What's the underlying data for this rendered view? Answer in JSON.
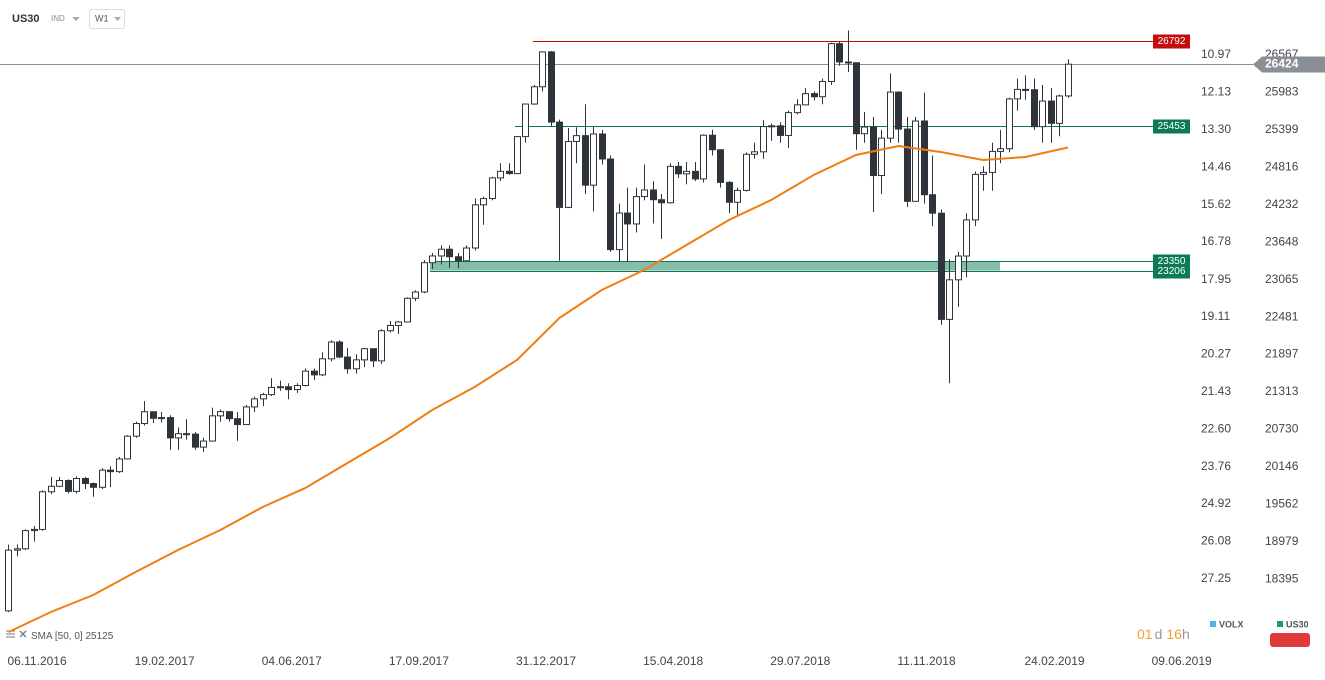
{
  "chart_data": {
    "type": "candlestick",
    "title": "US30",
    "subtitle": "IND",
    "interval": "W1",
    "xlim": [
      -1,
      140
    ],
    "xticks": [
      {
        "value": 0,
        "label": "06.11.2016"
      },
      {
        "value": 15,
        "label": "19.02.2017"
      },
      {
        "value": 30,
        "label": "04.06.2017"
      },
      {
        "value": 45,
        "label": "17.09.2017"
      },
      {
        "value": 60,
        "label": "31.12.2017"
      },
      {
        "value": 75,
        "label": "15.04.2018"
      },
      {
        "value": 90,
        "label": "29.07.2018"
      },
      {
        "value": 105,
        "label": "11.11.2018"
      },
      {
        "value": 120,
        "label": "24.02.2019"
      },
      {
        "value": 135,
        "label": "09.06.2019"
      }
    ],
    "ylim": [
      17290,
      27425
    ],
    "yticks": [
      26567,
      25983,
      25399,
      24816,
      24232,
      23648,
      23065,
      22481,
      21897,
      21313,
      20730,
      20146,
      19562,
      18979,
      18395
    ],
    "y2lim": [
      29.46,
      9.26
    ],
    "y2ticks": [
      10.97,
      12.13,
      {
        "value": 13.3,
        "label": "13.30"
      },
      14.46,
      15.62,
      16.78,
      17.95,
      19.11,
      20.27,
      21.43,
      {
        "value": 22.6,
        "label": "22.60"
      },
      23.76,
      24.92,
      26.08,
      27.25
    ],
    "series": [
      {
        "name": "US30",
        "up_color": "#ffffff",
        "down_color": "#2f343b",
        "open": [
          17900,
          18847,
          18868,
          19152,
          19170,
          19757,
          19843,
          19933,
          19763,
          19964,
          19886,
          19827,
          20094,
          20071,
          20269,
          20624,
          20821,
          21005,
          20903,
          20914,
          20597,
          20663,
          20656,
          20453,
          20548,
          20941,
          21007,
          20897,
          20805,
          21080,
          21206,
          21272,
          21384,
          21395,
          21350,
          21414,
          21638,
          21580,
          21830,
          22092,
          21858,
          21675,
          21814,
          21988,
          21798,
          22268,
          22350,
          22405,
          22774,
          22872,
          23329,
          23434,
          23539,
          23422,
          23358,
          23558,
          24231,
          24329,
          24651,
          24754,
          24719,
          25295,
          25803,
          26072,
          26616,
          25521,
          24191,
          25219,
          25310,
          24538,
          25336,
          24946,
          23533,
          24103,
          23933,
          24360,
          24463,
          24311,
          24263,
          24831,
          24715,
          24753,
          24635,
          25317,
          25090,
          24581,
          24271,
          24456,
          25019,
          25058,
          25451,
          25463,
          25313,
          25669,
          25790,
          25965,
          25917,
          26155,
          26744,
          26458,
          26447,
          25340,
          25444,
          24688,
          25271,
          25989,
          25413,
          24286,
          25538,
          24389,
          24101,
          22445,
          23062,
          23433,
          23996,
          24706,
          24737,
          25064,
          25106,
          25883,
          26031,
          26026,
          25450,
          25849,
          25502,
          25929
        ],
        "high": [
          18934,
          18935,
          19170,
          19225,
          19780,
          19990,
          19990,
          19950,
          19999,
          19990,
          19900,
          20125,
          20155,
          20300,
          20640,
          20850,
          21170,
          21000,
          21000,
          20950,
          20760,
          20890,
          20690,
          20600,
          21070,
          21040,
          21010,
          21000,
          21110,
          21240,
          21300,
          21530,
          21490,
          21450,
          21450,
          21680,
          21680,
          21930,
          22120,
          22120,
          22000,
          21900,
          22000,
          21990,
          22290,
          22420,
          22420,
          22790,
          22900,
          23370,
          23480,
          23600,
          23600,
          23480,
          23600,
          24330,
          24360,
          24670,
          24880,
          24880,
          25300,
          25810,
          26100,
          26620,
          26630,
          25560,
          25430,
          25440,
          25800,
          25450,
          25400,
          25000,
          24250,
          24500,
          24500,
          24860,
          24600,
          24400,
          24880,
          24900,
          24900,
          24900,
          25330,
          25400,
          25100,
          24600,
          24500,
          25050,
          25200,
          25550,
          25500,
          25520,
          25700,
          25880,
          26050,
          26000,
          26200,
          26760,
          26770,
          26950,
          26450,
          25680,
          25600,
          25400,
          26280,
          26000,
          25600,
          25600,
          25980,
          25000,
          24160,
          23380,
          23500,
          24100,
          24750,
          24830,
          25200,
          25400,
          25900,
          26200,
          26250,
          26200,
          26100,
          26050,
          25950,
          26500
        ],
        "low": [
          17880,
          18750,
          18850,
          18980,
          19150,
          19720,
          19830,
          19730,
          19730,
          19800,
          19680,
          19800,
          19830,
          20050,
          20260,
          20600,
          20790,
          20830,
          20840,
          20410,
          20410,
          20570,
          20410,
          20380,
          20540,
          20850,
          20850,
          20550,
          20800,
          21000,
          21090,
          21250,
          21330,
          21200,
          21300,
          21400,
          21500,
          21560,
          21790,
          21840,
          21600,
          21600,
          21700,
          21700,
          21750,
          22240,
          22220,
          22400,
          22730,
          22850,
          23230,
          23300,
          23250,
          23240,
          23360,
          23520,
          23920,
          24300,
          24600,
          24700,
          24710,
          25200,
          25790,
          26000,
          25460,
          23360,
          24180,
          24880,
          24400,
          24130,
          24860,
          23500,
          23340,
          23340,
          23800,
          24300,
          23940,
          23700,
          24250,
          24650,
          24550,
          24600,
          24580,
          25000,
          24500,
          24100,
          24070,
          24440,
          24950,
          24950,
          25230,
          25200,
          25120,
          25640,
          25780,
          25860,
          25800,
          26100,
          26400,
          26300,
          25090,
          25200,
          24120,
          24400,
          25200,
          25200,
          24200,
          24280,
          24250,
          23900,
          22360,
          21450,
          22640,
          23100,
          23900,
          24450,
          24450,
          24880,
          25050,
          25700,
          25870,
          25400,
          25200,
          25200,
          25300,
          25900
        ],
        "close": [
          18847,
          18868,
          19152,
          19170,
          19757,
          19843,
          19933,
          19763,
          19964,
          19886,
          19827,
          20094,
          20071,
          20269,
          20624,
          20821,
          21005,
          20903,
          20914,
          20597,
          20663,
          20656,
          20453,
          20548,
          20941,
          21007,
          20897,
          20805,
          21080,
          21206,
          21272,
          21384,
          21395,
          21350,
          21414,
          21638,
          21580,
          21830,
          22092,
          21858,
          21675,
          21814,
          21988,
          21798,
          22268,
          22350,
          22405,
          22774,
          22872,
          23329,
          23434,
          23539,
          23422,
          23358,
          23558,
          24231,
          24329,
          24651,
          24754,
          24719,
          25295,
          25803,
          26072,
          26616,
          25521,
          24191,
          25219,
          25310,
          24538,
          25336,
          24946,
          23533,
          24103,
          23933,
          24360,
          24463,
          24311,
          24263,
          24831,
          24715,
          24753,
          24635,
          25317,
          25090,
          24581,
          24271,
          24456,
          25019,
          25058,
          25451,
          25463,
          25313,
          25669,
          25790,
          25965,
          25917,
          26155,
          26744,
          26458,
          26447,
          25340,
          25444,
          24688,
          25271,
          25989,
          25413,
          24286,
          25538,
          24389,
          24101,
          22445,
          23062,
          23433,
          23996,
          24706,
          24737,
          25064,
          25106,
          25883,
          26031,
          26026,
          25450,
          25849,
          25502,
          25929,
          26424
        ]
      }
    ],
    "indicators": [
      {
        "name": "SMA",
        "params": "[50, 0]",
        "color": "#ef7d12",
        "x": [
          0,
          5,
          10,
          15,
          20,
          25,
          30,
          35,
          40,
          45,
          50,
          55,
          60,
          65,
          70,
          75,
          80,
          85,
          90,
          95,
          100,
          105,
          110,
          115,
          120,
          125
        ],
        "values": [
          17570,
          17882,
          18147,
          18506,
          18849,
          19161,
          19519,
          19815,
          20205,
          20595,
          21032,
          21390,
          21812,
          22467,
          22903,
          23215,
          23605,
          23995,
          24306,
          24696,
          25008,
          25148,
          25055,
          24930,
          24977,
          25125
        ]
      }
    ],
    "levels": [
      {
        "value": 26792,
        "color": "#c40c0c"
      },
      {
        "value": 25453,
        "color": "#0b7a55"
      },
      {
        "value": 23350,
        "color": "#0b7a55"
      },
      {
        "value": 23206,
        "color": "#0b7a55"
      }
    ],
    "last_price": 26424,
    "last_price_color": "#8a8f96",
    "legend": [
      {
        "name": "VOLX",
        "color": "#4fb3e8"
      },
      {
        "name": "US30",
        "color": "#1a9c6b"
      }
    ],
    "countdown": [
      "01",
      "d",
      "16",
      "h"
    ]
  }
}
